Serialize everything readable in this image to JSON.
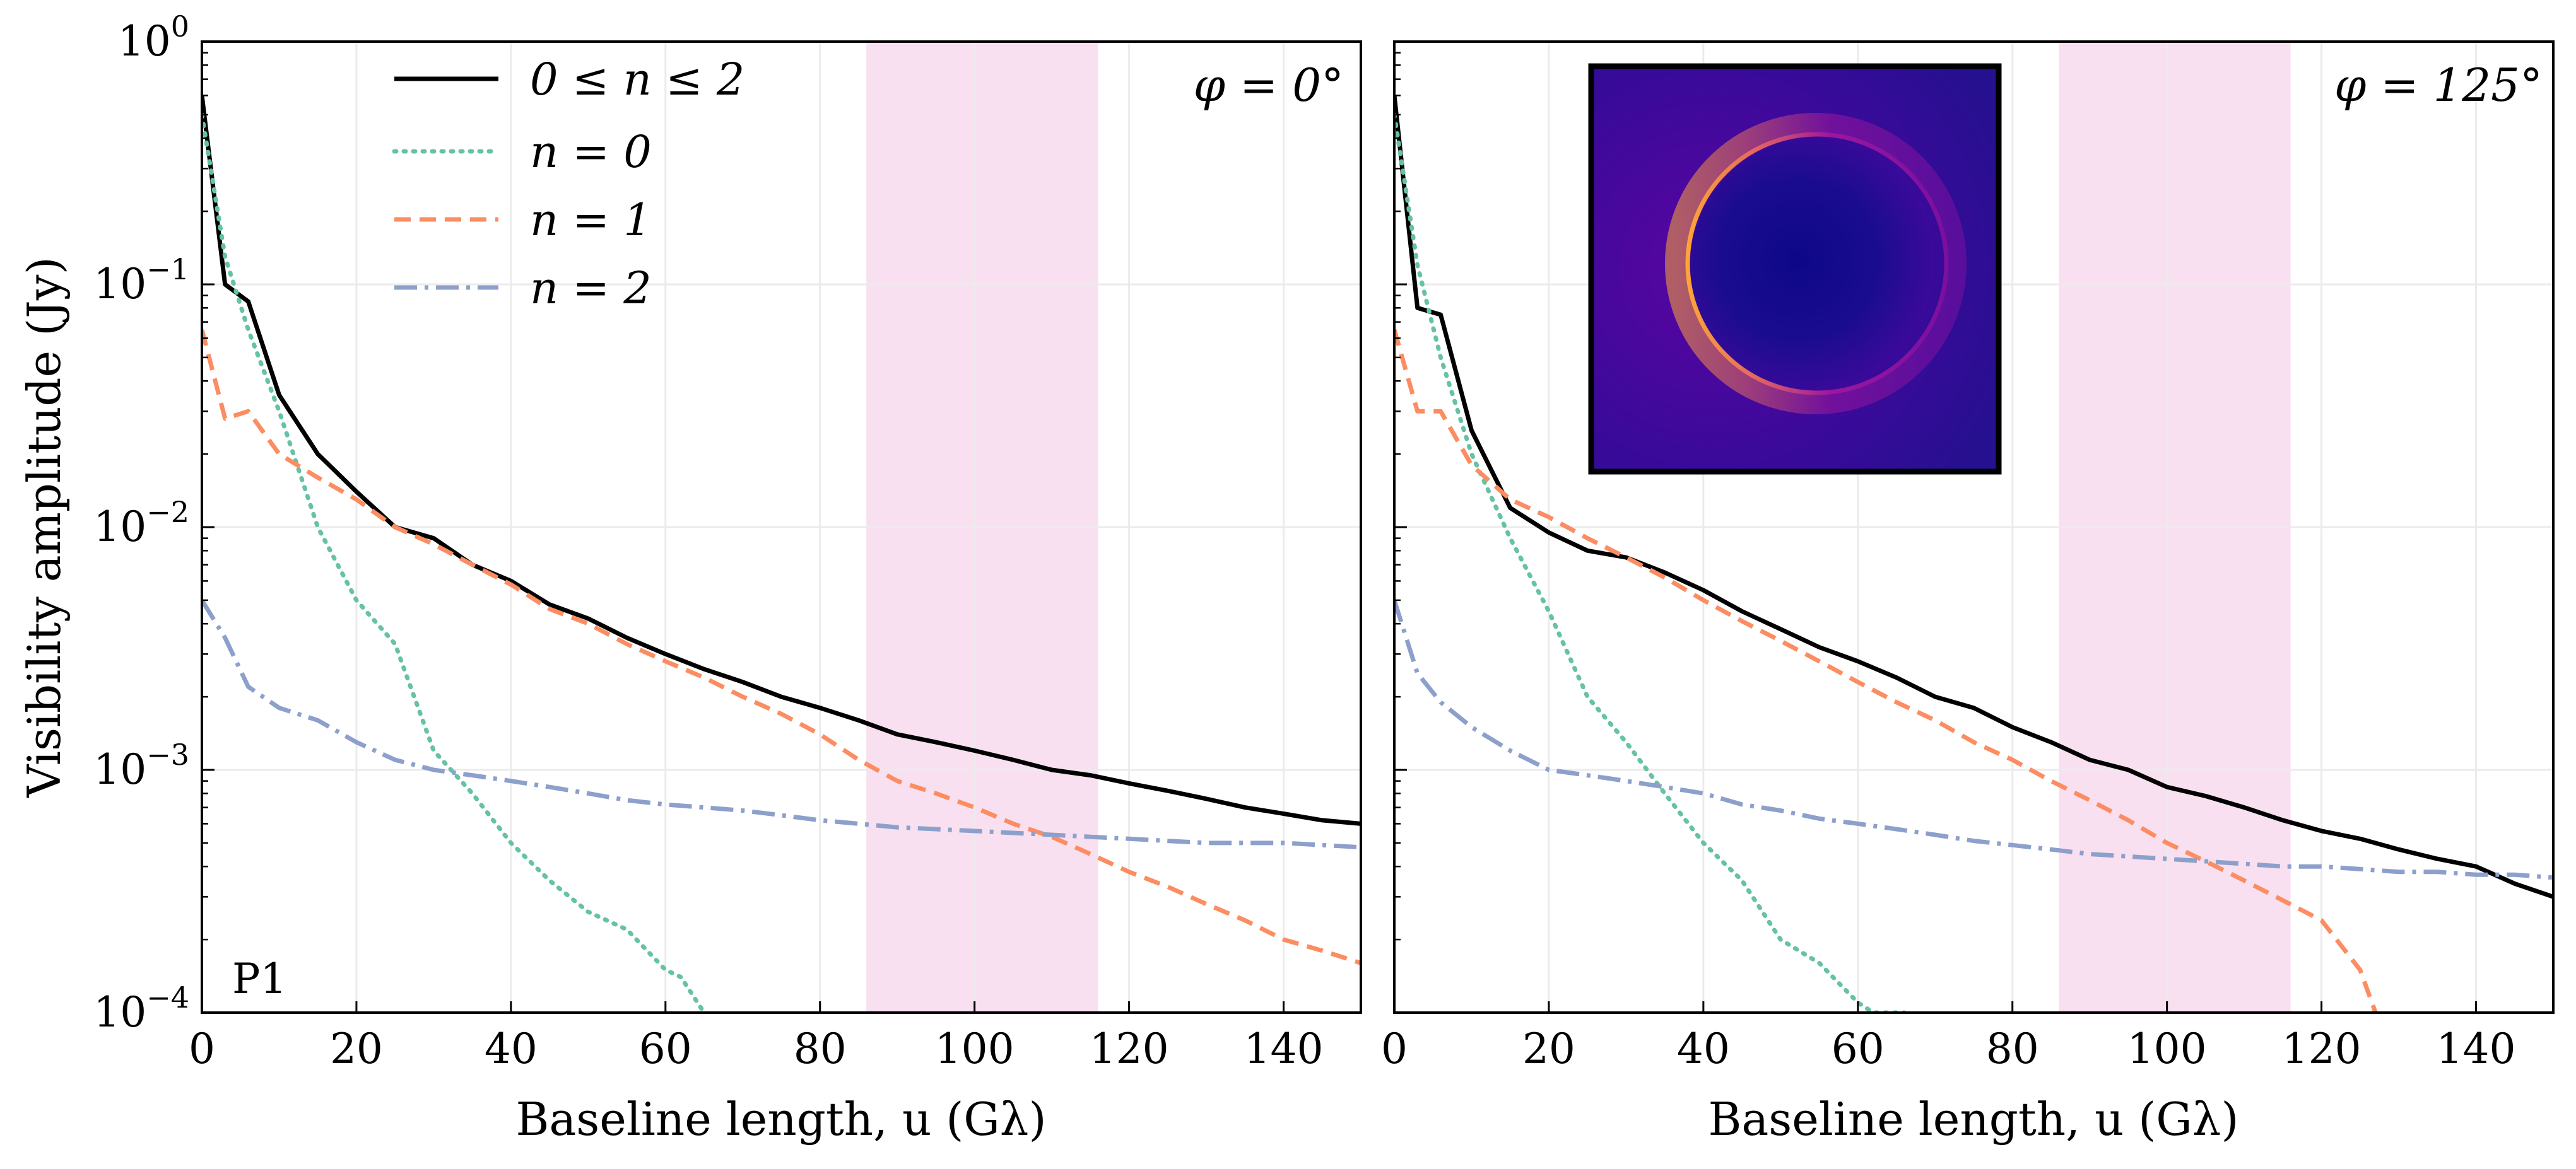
{
  "chart_data": [
    {
      "type": "line",
      "panel": "left",
      "phi_label": "φ = 0°",
      "corner_label": "P1",
      "xlabel": "Baseline length, u (Gλ)",
      "ylabel": "Visibility amplitude (Jy)",
      "xlim": [
        0,
        150
      ],
      "ylim": [
        0.0001,
        1
      ],
      "yscale": "log",
      "x_ticks": [
        "0",
        "20",
        "40",
        "60",
        "80",
        "100",
        "120",
        "140"
      ],
      "y_ticks": [
        {
          "base": "10",
          "exp": "0"
        },
        {
          "base": "10",
          "exp": "−1"
        },
        {
          "base": "10",
          "exp": "−2"
        },
        {
          "base": "10",
          "exp": "−3"
        },
        {
          "base": "10",
          "exp": "−4"
        }
      ],
      "shaded_band": [
        86,
        116
      ],
      "grid": true,
      "legend_position": "top-left",
      "series": [
        {
          "name": "0 ≤ n ≤ 2",
          "style": "solid",
          "color": "#000000",
          "x": [
            0,
            3,
            6,
            10,
            15,
            20,
            25,
            30,
            35,
            40,
            45,
            50,
            55,
            60,
            65,
            70,
            75,
            80,
            85,
            90,
            95,
            100,
            105,
            110,
            115,
            120,
            125,
            130,
            135,
            140,
            145,
            150
          ],
          "y": [
            0.6,
            0.1,
            0.085,
            0.035,
            0.02,
            0.014,
            0.01,
            0.009,
            0.007,
            0.006,
            0.0048,
            0.0042,
            0.0035,
            0.003,
            0.0026,
            0.0023,
            0.002,
            0.0018,
            0.0016,
            0.0014,
            0.0013,
            0.0012,
            0.0011,
            0.001,
            0.00095,
            0.00088,
            0.00082,
            0.00076,
            0.0007,
            0.00066,
            0.00062,
            0.0006
          ]
        },
        {
          "name": "n = 0",
          "style": "dotted",
          "color": "#66c2a5",
          "x": [
            0,
            3,
            6,
            10,
            15,
            20,
            25,
            30,
            35,
            40,
            45,
            50,
            55,
            60,
            62,
            65
          ],
          "y": [
            0.5,
            0.13,
            0.065,
            0.03,
            0.01,
            0.005,
            0.0033,
            0.0012,
            0.0008,
            0.0005,
            0.00035,
            0.00026,
            0.00022,
            0.00015,
            0.00014,
            0.0001
          ]
        },
        {
          "name": "n = 1",
          "style": "dashed",
          "color": "#fc8d62",
          "x": [
            0,
            3,
            6,
            10,
            15,
            20,
            25,
            30,
            35,
            40,
            45,
            50,
            55,
            60,
            65,
            70,
            75,
            80,
            85,
            90,
            95,
            100,
            105,
            110,
            115,
            120,
            125,
            130,
            135,
            140,
            145,
            150
          ],
          "y": [
            0.065,
            0.028,
            0.03,
            0.02,
            0.016,
            0.013,
            0.01,
            0.0085,
            0.007,
            0.0058,
            0.0046,
            0.004,
            0.0033,
            0.0028,
            0.0024,
            0.002,
            0.0017,
            0.0014,
            0.0011,
            0.0009,
            0.0008,
            0.0007,
            0.0006,
            0.00053,
            0.00045,
            0.00038,
            0.00033,
            0.00028,
            0.00024,
            0.0002,
            0.00018,
            0.00016
          ]
        },
        {
          "name": "n = 2",
          "style": "dashdot",
          "color": "#8da0cb",
          "x": [
            0,
            3,
            6,
            10,
            15,
            20,
            25,
            30,
            35,
            40,
            45,
            50,
            55,
            60,
            65,
            70,
            75,
            80,
            85,
            90,
            95,
            100,
            105,
            110,
            115,
            120,
            125,
            130,
            135,
            140,
            145,
            150
          ],
          "y": [
            0.005,
            0.0035,
            0.0022,
            0.0018,
            0.0016,
            0.0013,
            0.0011,
            0.001,
            0.00095,
            0.0009,
            0.00085,
            0.0008,
            0.00075,
            0.00072,
            0.0007,
            0.00068,
            0.00065,
            0.00062,
            0.0006,
            0.00058,
            0.00057,
            0.00056,
            0.00055,
            0.00054,
            0.00053,
            0.00052,
            0.00051,
            0.0005,
            0.0005,
            0.0005,
            0.00049,
            0.00048
          ]
        }
      ]
    },
    {
      "type": "line",
      "panel": "right",
      "phi_label": "φ = 125°",
      "xlabel": "Baseline length, u (Gλ)",
      "xlim": [
        0,
        150
      ],
      "ylim": [
        0.0001,
        1
      ],
      "yscale": "log",
      "x_ticks": [
        "0",
        "20",
        "40",
        "60",
        "80",
        "100",
        "120",
        "140"
      ],
      "shaded_band": [
        86,
        116
      ],
      "grid": true,
      "inset": "ring image (black-hole photon ring, brighter on the left)",
      "series": [
        {
          "name": "0 ≤ n ≤ 2",
          "style": "solid",
          "color": "#000000",
          "x": [
            0,
            3,
            6,
            10,
            15,
            20,
            25,
            30,
            35,
            40,
            45,
            50,
            55,
            60,
            65,
            70,
            75,
            80,
            85,
            90,
            95,
            100,
            105,
            110,
            115,
            120,
            125,
            130,
            135,
            140,
            145,
            150
          ],
          "y": [
            0.6,
            0.08,
            0.075,
            0.025,
            0.012,
            0.0095,
            0.008,
            0.0075,
            0.0065,
            0.0055,
            0.0045,
            0.0038,
            0.0032,
            0.0028,
            0.0024,
            0.002,
            0.0018,
            0.0015,
            0.0013,
            0.0011,
            0.001,
            0.00085,
            0.00078,
            0.0007,
            0.00062,
            0.00056,
            0.00052,
            0.00047,
            0.00043,
            0.0004,
            0.00034,
            0.0003
          ]
        },
        {
          "name": "n = 0",
          "style": "dotted",
          "color": "#66c2a5",
          "x": [
            0,
            3,
            6,
            10,
            15,
            20,
            25,
            30,
            35,
            40,
            45,
            50,
            55,
            60,
            62,
            66
          ],
          "y": [
            0.5,
            0.12,
            0.05,
            0.02,
            0.009,
            0.0045,
            0.002,
            0.0013,
            0.0008,
            0.0005,
            0.00035,
            0.0002,
            0.00016,
            0.00011,
            0.0001,
            0.0001
          ]
        },
        {
          "name": "n = 1",
          "style": "dashed",
          "color": "#fc8d62",
          "x": [
            0,
            3,
            6,
            10,
            15,
            20,
            25,
            30,
            35,
            40,
            45,
            50,
            55,
            60,
            65,
            70,
            75,
            80,
            85,
            90,
            95,
            100,
            105,
            110,
            115,
            120,
            125,
            127
          ],
          "y": [
            0.065,
            0.03,
            0.03,
            0.018,
            0.013,
            0.011,
            0.009,
            0.0075,
            0.0062,
            0.005,
            0.0041,
            0.0034,
            0.0028,
            0.0023,
            0.0019,
            0.0016,
            0.0013,
            0.0011,
            0.0009,
            0.00075,
            0.00062,
            0.0005,
            0.00042,
            0.00035,
            0.00029,
            0.00024,
            0.00015,
            0.0001
          ]
        },
        {
          "name": "n = 2",
          "style": "dashdot",
          "color": "#8da0cb",
          "x": [
            0,
            3,
            6,
            10,
            15,
            20,
            25,
            30,
            35,
            40,
            45,
            50,
            55,
            60,
            65,
            70,
            75,
            80,
            85,
            90,
            95,
            100,
            105,
            110,
            115,
            120,
            125,
            130,
            135,
            140,
            145,
            150
          ],
          "y": [
            0.005,
            0.0025,
            0.0019,
            0.0015,
            0.0012,
            0.001,
            0.00095,
            0.0009,
            0.00085,
            0.0008,
            0.00072,
            0.00068,
            0.00063,
            0.0006,
            0.00057,
            0.00054,
            0.00051,
            0.00049,
            0.00047,
            0.00045,
            0.00044,
            0.00043,
            0.00042,
            0.00041,
            0.0004,
            0.0004,
            0.00039,
            0.00038,
            0.00038,
            0.00037,
            0.00037,
            0.00036
          ]
        }
      ]
    }
  ]
}
